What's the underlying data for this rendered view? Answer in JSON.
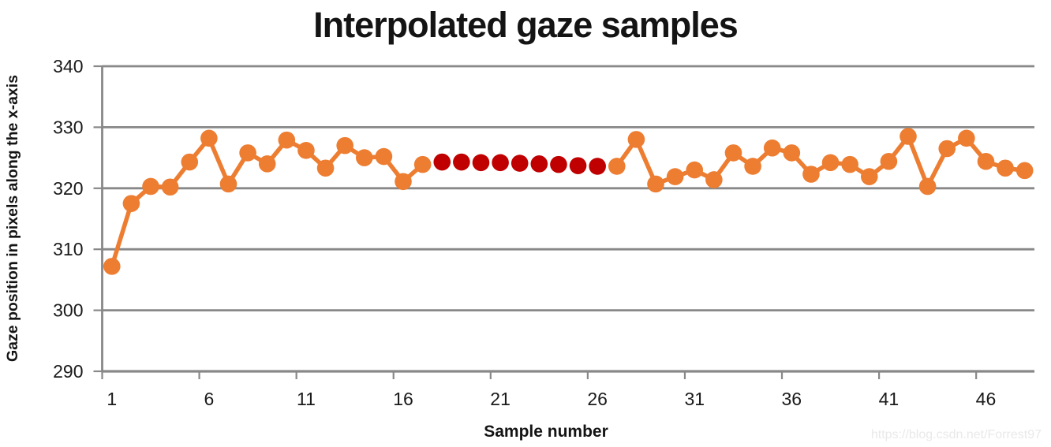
{
  "title": {
    "text": "Interpolated gaze samples"
  },
  "watermark": {
    "text": "https://blog.csdn.net/Forrest97"
  },
  "chart_data": {
    "type": "line",
    "title": "Interpolated gaze samples",
    "xlabel": "Sample number",
    "ylabel": "Gaze position in pixels along the x-axis",
    "legend": "none",
    "grid": "horizontal",
    "ylim": [
      290,
      340
    ],
    "y_ticks": [
      290,
      300,
      310,
      320,
      330,
      340
    ],
    "x_ticks": [
      1,
      6,
      11,
      16,
      21,
      26,
      31,
      36,
      41,
      46
    ],
    "x_tick_marks_every": 5,
    "x": [
      1,
      2,
      3,
      4,
      5,
      6,
      7,
      8,
      9,
      10,
      11,
      12,
      13,
      14,
      15,
      16,
      17,
      18,
      19,
      20,
      21,
      22,
      23,
      24,
      25,
      26,
      27,
      28,
      29,
      30,
      31,
      32,
      33,
      34,
      35,
      36,
      37,
      38,
      39,
      40,
      41,
      42,
      43,
      44,
      45,
      46,
      47,
      48
    ],
    "values": [
      307.2,
      317.5,
      320.3,
      320.2,
      324.3,
      328.2,
      320.7,
      325.8,
      324.0,
      327.9,
      326.2,
      323.3,
      327.0,
      325.0,
      325.2,
      321.1,
      323.9,
      324.3,
      324.3,
      324.2,
      324.2,
      324.1,
      324.0,
      323.9,
      323.7,
      323.6,
      323.6,
      328.0,
      320.7,
      321.9,
      323.0,
      321.4,
      325.8,
      323.6,
      326.6,
      325.8,
      322.3,
      324.2,
      323.9,
      321.9,
      324.4,
      328.5,
      320.3,
      326.5,
      328.2,
      324.4,
      323.3,
      322.9
    ],
    "interpolated_samples": [
      18,
      19,
      20,
      21,
      22,
      23,
      24,
      25,
      26
    ],
    "interpolated_note": "samples 18-26 are drawn as dark-red markers with no connecting line; all other samples are orange markers joined by an orange line",
    "colors": {
      "measured": "#ED7D31",
      "interpolated": "#C00000",
      "grid": "#888888",
      "text": "#1a1a1a",
      "watermark": "#e9e9e9"
    }
  }
}
